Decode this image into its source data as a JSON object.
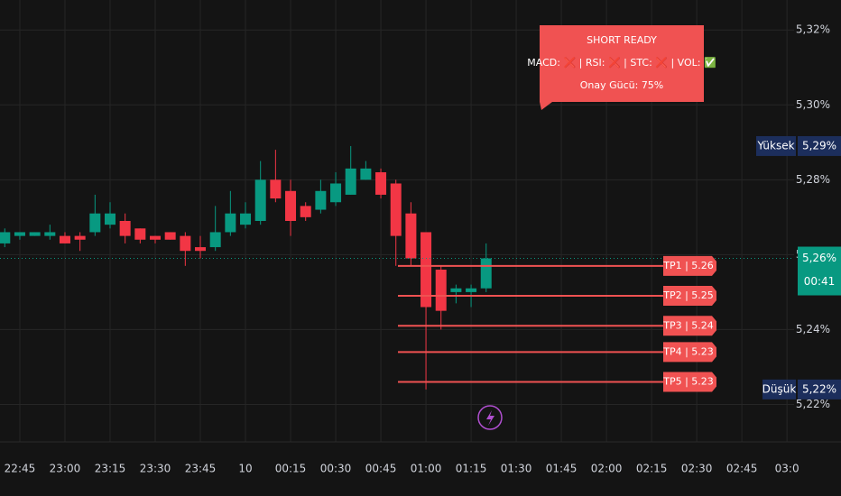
{
  "chart_data": {
    "type": "candlestick",
    "categories": [
      null,
      "22:45",
      null,
      null,
      "23:00",
      null,
      null,
      "23:15",
      null,
      null,
      "23:30",
      null,
      null,
      "23:45",
      null,
      null,
      "10",
      null,
      null,
      "00:15",
      null,
      null,
      "00:30",
      null,
      null,
      "00:45",
      null,
      null,
      "01:00",
      null,
      null,
      "01:15",
      null,
      null,
      "01:30",
      null,
      null,
      "01:45",
      null,
      null,
      "02:00",
      null,
      null,
      "02:15",
      null,
      null,
      "02:30",
      null,
      null,
      "02:45",
      null,
      null,
      "03:0"
    ],
    "open": [
      5.263,
      5.265,
      5.265,
      5.265,
      5.265,
      5.265,
      5.266,
      5.268,
      5.269,
      5.267,
      5.265,
      5.266,
      5.265,
      5.262,
      5.262,
      5.266,
      5.268,
      5.269,
      5.28,
      5.277,
      5.273,
      5.272,
      5.274,
      5.276,
      5.28,
      5.282,
      5.279,
      5.271,
      5.266,
      5.256,
      5.25,
      5.25,
      5.251,
      null,
      null,
      null,
      null,
      null,
      null,
      null,
      null,
      null,
      null,
      null,
      null,
      null,
      null,
      null,
      null,
      null,
      null,
      null,
      null
    ],
    "high": [
      5.267,
      5.266,
      5.266,
      5.268,
      5.266,
      5.266,
      5.276,
      5.274,
      5.271,
      5.267,
      5.265,
      5.266,
      5.266,
      5.265,
      5.273,
      5.277,
      5.274,
      5.285,
      5.288,
      5.28,
      5.274,
      5.28,
      5.282,
      5.289,
      5.285,
      5.283,
      5.28,
      5.274,
      5.266,
      5.257,
      5.252,
      5.252,
      5.263,
      null,
      null,
      null,
      null,
      null,
      null,
      null,
      null,
      null,
      null,
      null,
      null,
      null,
      null,
      null,
      null,
      null,
      null,
      null,
      null
    ],
    "low": [
      5.262,
      5.264,
      5.265,
      5.264,
      5.263,
      5.261,
      5.265,
      5.267,
      5.263,
      5.263,
      5.263,
      5.264,
      5.257,
      5.259,
      5.261,
      5.265,
      5.267,
      5.268,
      5.274,
      5.265,
      5.269,
      5.271,
      5.273,
      5.276,
      5.28,
      5.275,
      5.257,
      5.257,
      5.224,
      5.24,
      5.247,
      5.246,
      5.25,
      null,
      null,
      null,
      null,
      null,
      null,
      null,
      null,
      null,
      null,
      null,
      null,
      null,
      null,
      null,
      null,
      null,
      null,
      null,
      null
    ],
    "close": [
      5.266,
      5.266,
      5.266,
      5.266,
      5.263,
      5.264,
      5.271,
      5.271,
      5.265,
      5.264,
      5.264,
      5.264,
      5.261,
      5.261,
      5.266,
      5.271,
      5.271,
      5.28,
      5.275,
      5.269,
      5.27,
      5.277,
      5.279,
      5.283,
      5.283,
      5.276,
      5.265,
      5.259,
      5.246,
      5.245,
      5.251,
      5.251,
      5.259,
      null,
      null,
      null,
      null,
      null,
      null,
      null,
      null,
      null,
      null,
      null,
      null,
      null,
      null,
      null,
      null,
      null,
      null,
      null,
      null
    ],
    "up_color": "#089981",
    "down_color": "#f23645",
    "ylim": [
      5.21,
      5.328
    ],
    "yticks": [
      {
        "value": 5.32,
        "label": "5,32%"
      },
      {
        "value": 5.3,
        "label": "5,30%"
      },
      {
        "value": 5.28,
        "label": "5,28%"
      },
      {
        "value": 5.26,
        "label": "5,26%"
      },
      {
        "value": 5.24,
        "label": "5,24%"
      },
      {
        "value": 5.22,
        "label": "5,22%"
      }
    ],
    "grid": true,
    "current_price": {
      "value": 5.259,
      "label": "5,26%",
      "countdown": "00:41"
    },
    "high_marker": {
      "name": "Yüksek",
      "value": 5.289,
      "label": "5,29%"
    },
    "low_marker": {
      "name": "Düşük",
      "value": 5.224,
      "label": "5,22%"
    },
    "targets": [
      {
        "label": "TP1 | 5.26",
        "value": 5.257
      },
      {
        "label": "TP2 | 5.25",
        "value": 5.249
      },
      {
        "label": "TP3 | 5.24",
        "value": 5.241
      },
      {
        "label": "TP4 | 5.23",
        "value": 5.234
      },
      {
        "label": "TP5 | 5.23",
        "value": 5.226
      }
    ],
    "target_color": "#f05252",
    "signal_box": {
      "title": "SHORT READY",
      "status": "MACD: ❌ | RSI: ❌ | STC: ❌ | VOL: ✅",
      "strength": "Onay Gücü: 75%"
    }
  }
}
